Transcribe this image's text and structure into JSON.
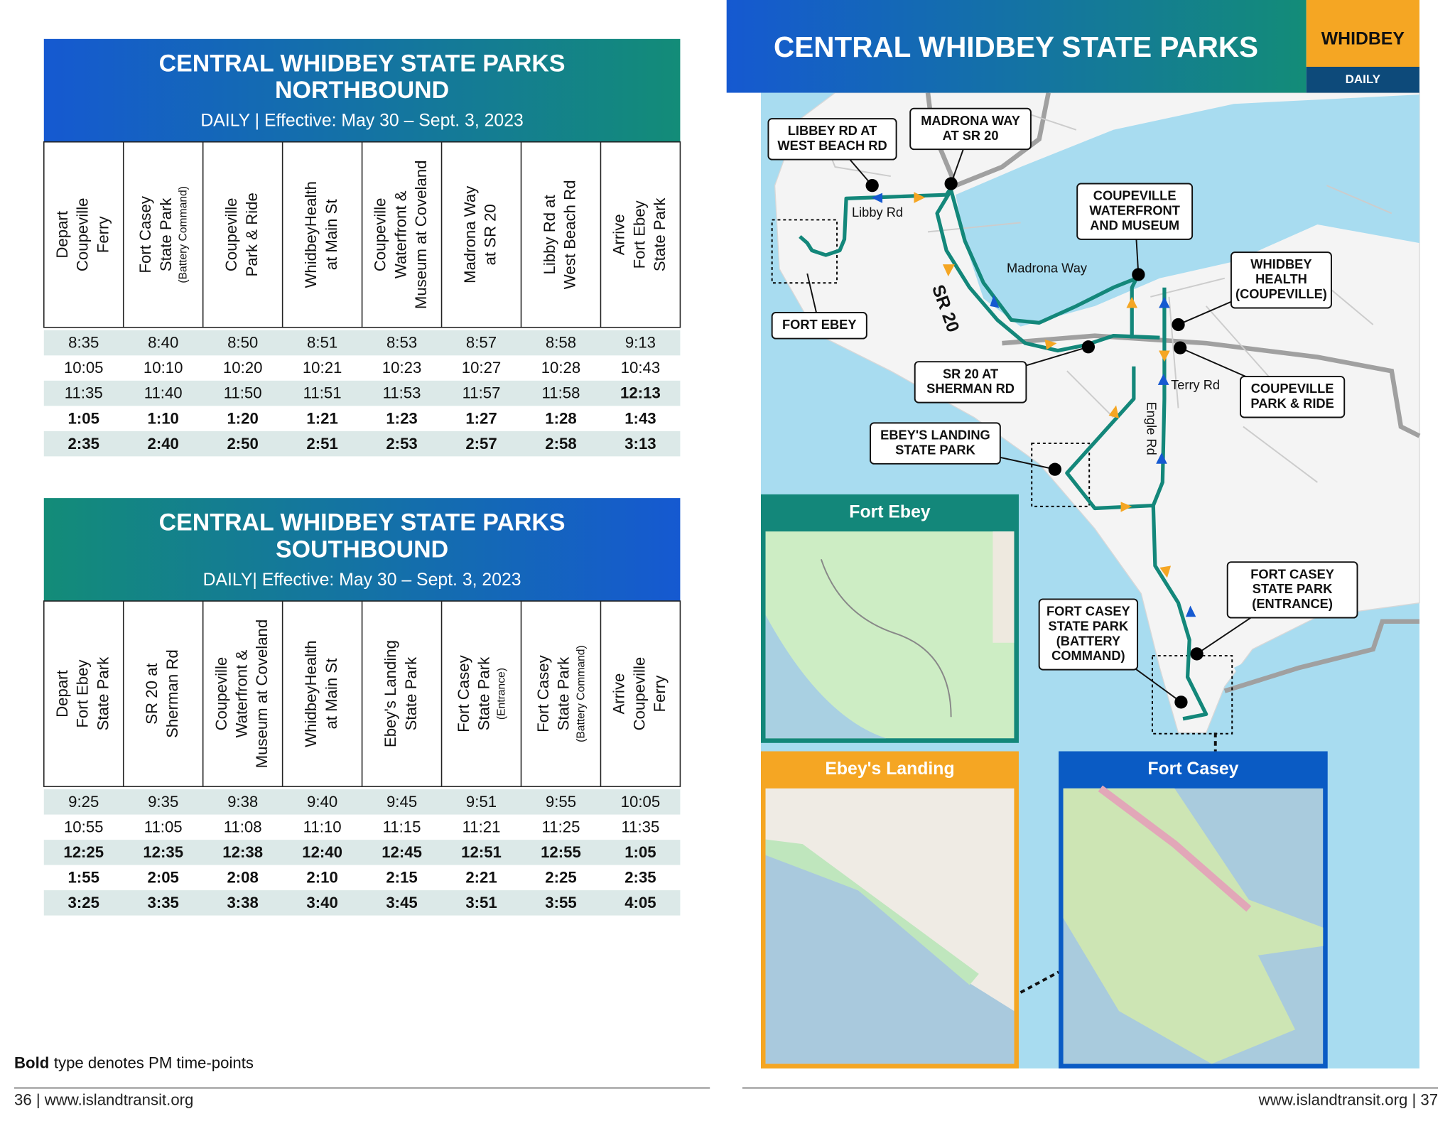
{
  "left_page": {
    "northbound": {
      "title_line1": "CENTRAL WHIDBEY STATE PARKS",
      "title_line2": "NORTHBOUND",
      "subtitle": "DAILY | Effective: May 30 – Sept. 3, 2023",
      "columns": [
        {
          "lines": [
            "Depart",
            "Coupeville",
            "Ferry"
          ]
        },
        {
          "lines": [
            "Fort Casey",
            "State Park"
          ],
          "note": "(Battery Command)"
        },
        {
          "lines": [
            "Coupeville",
            "Park & Ride"
          ]
        },
        {
          "lines": [
            "WhidbeyHealth",
            "at Main St"
          ]
        },
        {
          "lines": [
            "Coupeville",
            "Waterfront &",
            "Museum at Coveland"
          ]
        },
        {
          "lines": [
            "Madrona Way",
            "at SR 20"
          ]
        },
        {
          "lines": [
            "Libby Rd at",
            "West Beach Rd"
          ]
        },
        {
          "lines": [
            "Arrive",
            "Fort Ebey",
            "State Park"
          ]
        }
      ],
      "rows": [
        [
          "8:35",
          "8:40",
          "8:50",
          "8:51",
          "8:53",
          "8:57",
          "8:58",
          "9:13"
        ],
        [
          "10:05",
          "10:10",
          "10:20",
          "10:21",
          "10:23",
          "10:27",
          "10:28",
          "10:43"
        ],
        [
          "11:35",
          "11:40",
          "11:50",
          "11:51",
          "11:53",
          "11:57",
          "11:58",
          "12:13"
        ],
        [
          "1:05",
          "1:10",
          "1:20",
          "1:21",
          "1:23",
          "1:27",
          "1:28",
          "1:43"
        ],
        [
          "2:35",
          "2:40",
          "2:50",
          "2:51",
          "2:53",
          "2:57",
          "2:58",
          "3:13"
        ]
      ],
      "bold_from": [
        null,
        null,
        7,
        0,
        0
      ]
    },
    "southbound": {
      "title_line1": "CENTRAL WHIDBEY STATE PARKS",
      "title_line2": "SOUTHBOUND",
      "subtitle": "DAILY| Effective: May 30 – Sept. 3, 2023",
      "columns": [
        {
          "lines": [
            "Depart",
            "Fort Ebey",
            "State Park"
          ]
        },
        {
          "lines": [
            "SR 20 at",
            "Sherman Rd"
          ]
        },
        {
          "lines": [
            "Coupeville",
            "Waterfront &",
            "Museum at Coveland"
          ]
        },
        {
          "lines": [
            "WhidbeyHealth",
            "at Main St"
          ]
        },
        {
          "lines": [
            "Ebey's Landing",
            "State Park"
          ]
        },
        {
          "lines": [
            "Fort Casey",
            "State Park"
          ],
          "note": "(Entrance)"
        },
        {
          "lines": [
            "Fort Casey",
            "State Park"
          ],
          "note": "(Battery Command)"
        },
        {
          "lines": [
            "Arrive",
            "Coupeville",
            "Ferry"
          ]
        }
      ],
      "rows": [
        [
          "9:25",
          "9:35",
          "9:38",
          "9:40",
          "9:45",
          "9:51",
          "9:55",
          "10:05"
        ],
        [
          "10:55",
          "11:05",
          "11:08",
          "11:10",
          "11:15",
          "11:21",
          "11:25",
          "11:35"
        ],
        [
          "12:25",
          "12:35",
          "12:38",
          "12:40",
          "12:45",
          "12:51",
          "12:55",
          "1:05"
        ],
        [
          "1:55",
          "2:05",
          "2:08",
          "2:10",
          "2:15",
          "2:21",
          "2:25",
          "2:35"
        ],
        [
          "3:25",
          "3:35",
          "3:38",
          "3:40",
          "3:45",
          "3:51",
          "3:55",
          "4:05"
        ]
      ],
      "bold_from": [
        null,
        null,
        0,
        0,
        0
      ]
    },
    "legend_bold": "Bold",
    "legend_text": "type denotes PM time-points",
    "footer": "36  |  www.islandtransit.org"
  },
  "right_page": {
    "title": "CENTRAL WHIDBEY STATE PARKS",
    "badge": "WHIDBEY",
    "badge_sub": "DAILY",
    "callouts": [
      {
        "lines": [
          "LIBBEY RD AT",
          "WEST BEACH RD"
        ]
      },
      {
        "lines": [
          "MADRONA WAY",
          "AT SR 20"
        ]
      },
      {
        "lines": [
          "COUPEVILLE",
          "WATERFRONT",
          "AND MUSEUM"
        ]
      },
      {
        "lines": [
          "WHIDBEY",
          "HEALTH",
          "(COUPEVILLE)"
        ]
      },
      {
        "lines": [
          "FORT EBEY"
        ]
      },
      {
        "lines": [
          "SR 20 AT",
          "SHERMAN RD"
        ]
      },
      {
        "lines": [
          "COUPEVILLE",
          "PARK & RIDE"
        ]
      },
      {
        "lines": [
          "EBEY'S LANDING",
          "STATE PARK"
        ]
      },
      {
        "lines": [
          "FORT CASEY",
          "STATE PARK",
          "(ENTRANCE)"
        ]
      },
      {
        "lines": [
          "FORT CASEY",
          "STATE PARK",
          "(BATTERY",
          "COMMAND)"
        ]
      }
    ],
    "road_labels": [
      "Libby Rd",
      "Madrona Way",
      "SR 20",
      "Terry Rd",
      "Engle Rd"
    ],
    "insets": [
      "Fort Ebey",
      "Ebey's Landing",
      "Fort Casey"
    ],
    "footer": "www.islandtransit.org  |  37"
  }
}
